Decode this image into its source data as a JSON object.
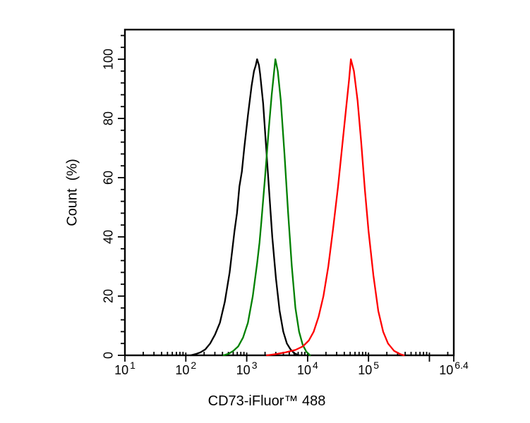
{
  "figure": {
    "background_color": "#ffffff",
    "border_color": "#000000"
  },
  "chart_data": {
    "type": "line",
    "subtype": "flow-cytometry-histogram",
    "title": "",
    "xlabel": "CD73-iFluor™ 488",
    "ylabel": "Count  (%)",
    "x_scale": "log10",
    "x_range_log": [
      1,
      6.4
    ],
    "y_range": [
      0,
      110
    ],
    "grid": false,
    "legend": "none",
    "x_major_ticks_log": [
      1,
      2,
      3,
      4,
      5,
      6,
      6.4
    ],
    "x_tick_labels": [
      {
        "log": 1,
        "base": "10",
        "exp": "1"
      },
      {
        "log": 2,
        "base": "10",
        "exp": "2"
      },
      {
        "log": 3,
        "base": "10",
        "exp": "3"
      },
      {
        "log": 4,
        "base": "10",
        "exp": "4"
      },
      {
        "log": 5,
        "base": "10",
        "exp": "5"
      },
      {
        "log": 6.4,
        "base": "10",
        "exp": "6.4"
      }
    ],
    "y_major_ticks": [
      0,
      20,
      40,
      60,
      80,
      100
    ],
    "y_minor_tick_step": 4,
    "series": [
      {
        "name": "black",
        "color": "#000000",
        "peak_log10_x": 3.17,
        "peak_percent": 100,
        "points": [
          [
            2.08,
            0
          ],
          [
            2.16,
            0.4
          ],
          [
            2.24,
            1
          ],
          [
            2.32,
            2
          ],
          [
            2.4,
            4
          ],
          [
            2.48,
            7
          ],
          [
            2.56,
            11
          ],
          [
            2.64,
            18
          ],
          [
            2.72,
            28
          ],
          [
            2.8,
            42
          ],
          [
            2.84,
            48
          ],
          [
            2.88,
            57
          ],
          [
            2.92,
            62
          ],
          [
            2.96,
            70
          ],
          [
            3.02,
            81
          ],
          [
            3.08,
            91
          ],
          [
            3.12,
            96
          ],
          [
            3.15,
            98
          ],
          [
            3.17,
            100
          ],
          [
            3.2,
            98
          ],
          [
            3.22,
            95
          ],
          [
            3.27,
            85
          ],
          [
            3.32,
            70
          ],
          [
            3.37,
            55
          ],
          [
            3.42,
            40
          ],
          [
            3.48,
            26
          ],
          [
            3.54,
            15
          ],
          [
            3.6,
            8
          ],
          [
            3.66,
            4
          ],
          [
            3.72,
            2
          ],
          [
            3.78,
            0.7
          ],
          [
            3.86,
            0
          ]
        ]
      },
      {
        "name": "green",
        "color": "#008000",
        "peak_log10_x": 3.47,
        "peak_percent": 100,
        "points": [
          [
            2.62,
            0
          ],
          [
            2.7,
            0.5
          ],
          [
            2.78,
            1.5
          ],
          [
            2.86,
            3
          ],
          [
            2.94,
            6
          ],
          [
            3.02,
            11
          ],
          [
            3.1,
            20
          ],
          [
            3.17,
            31
          ],
          [
            3.21,
            38
          ],
          [
            3.24,
            45
          ],
          [
            3.3,
            60
          ],
          [
            3.36,
            76
          ],
          [
            3.41,
            88
          ],
          [
            3.44,
            94
          ],
          [
            3.47,
            100
          ],
          [
            3.51,
            96
          ],
          [
            3.56,
            86
          ],
          [
            3.62,
            68
          ],
          [
            3.68,
            48
          ],
          [
            3.74,
            30
          ],
          [
            3.8,
            16
          ],
          [
            3.86,
            8
          ],
          [
            3.92,
            3.5
          ],
          [
            3.98,
            1.2
          ],
          [
            4.04,
            0
          ]
        ]
      },
      {
        "name": "red",
        "color": "#ff0000",
        "peak_log10_x": 4.71,
        "peak_percent": 100,
        "points": [
          [
            3.33,
            0
          ],
          [
            3.48,
            0.4
          ],
          [
            3.64,
            1
          ],
          [
            3.8,
            1.8
          ],
          [
            3.92,
            3
          ],
          [
            4.02,
            5
          ],
          [
            4.1,
            8
          ],
          [
            4.18,
            13
          ],
          [
            4.26,
            20
          ],
          [
            4.34,
            30
          ],
          [
            4.42,
            43
          ],
          [
            4.5,
            57
          ],
          [
            4.58,
            73
          ],
          [
            4.64,
            85
          ],
          [
            4.68,
            93
          ],
          [
            4.71,
            100
          ],
          [
            4.76,
            96
          ],
          [
            4.82,
            86
          ],
          [
            4.88,
            72
          ],
          [
            4.94,
            56
          ],
          [
            5.0,
            42
          ],
          [
            5.08,
            27
          ],
          [
            5.16,
            15
          ],
          [
            5.24,
            8
          ],
          [
            5.32,
            4
          ],
          [
            5.42,
            1.5
          ],
          [
            5.52,
            0.4
          ],
          [
            5.58,
            0
          ]
        ]
      }
    ]
  }
}
